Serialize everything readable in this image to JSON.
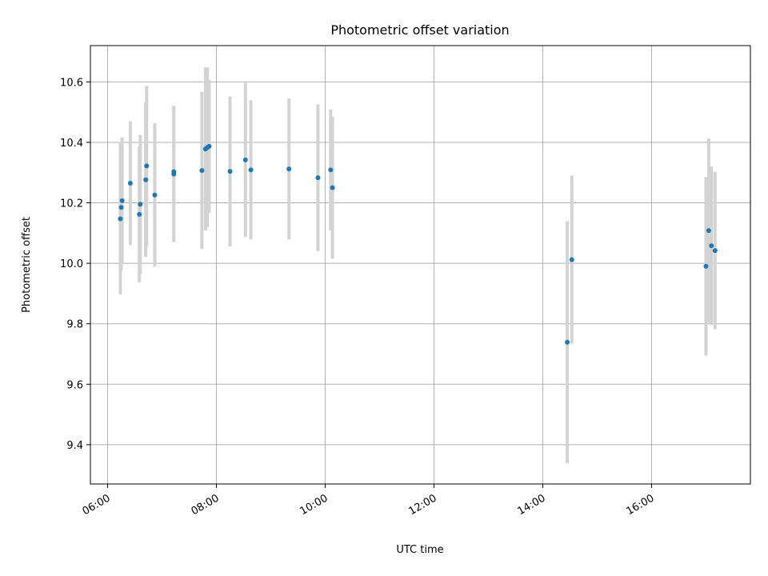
{
  "chart_data": {
    "type": "scatter",
    "title": "Photometric offset variation",
    "xlabel": "UTC time",
    "ylabel": "Photometric offset",
    "x_ticks": [
      "06:00",
      "08:00",
      "10:00",
      "12:00",
      "14:00",
      "16:00"
    ],
    "y_ticks": [
      "9.4",
      "9.6",
      "9.8",
      "10.0",
      "10.2",
      "10.4",
      "10.6"
    ],
    "xlim": [
      "05:41",
      "17:49"
    ],
    "ylim": [
      9.27,
      10.72
    ],
    "grid": true,
    "marker_color": "#1f77b4",
    "errorbar_color": "#d3d3d3",
    "points": [
      {
        "x": "06:14",
        "y": 10.147,
        "yerr": 0.25
      },
      {
        "x": "06:15",
        "y": 10.185,
        "yerr": 0.21
      },
      {
        "x": "06:16",
        "y": 10.207,
        "yerr": 0.21
      },
      {
        "x": "06:25",
        "y": 10.265,
        "yerr": 0.205
      },
      {
        "x": "06:35",
        "y": 10.162,
        "yerr": 0.225
      },
      {
        "x": "06:36",
        "y": 10.195,
        "yerr": 0.23
      },
      {
        "x": "06:42",
        "y": 10.276,
        "yerr": 0.255
      },
      {
        "x": "06:43",
        "y": 10.322,
        "yerr": 0.265
      },
      {
        "x": "06:52",
        "y": 10.226,
        "yerr": 0.237
      },
      {
        "x": "07:13",
        "y": 10.295,
        "yerr": 0.225
      },
      {
        "x": "07:13",
        "y": 10.303,
        "yerr": 0.218
      },
      {
        "x": "07:44",
        "y": 10.307,
        "yerr": 0.26
      },
      {
        "x": "07:48",
        "y": 10.378,
        "yerr": 0.27
      },
      {
        "x": "07:50",
        "y": 10.383,
        "yerr": 0.265
      },
      {
        "x": "07:52",
        "y": 10.387,
        "yerr": 0.22
      },
      {
        "x": "08:15",
        "y": 10.304,
        "yerr": 0.248
      },
      {
        "x": "08:32",
        "y": 10.342,
        "yerr": 0.255
      },
      {
        "x": "08:38",
        "y": 10.309,
        "yerr": 0.23
      },
      {
        "x": "09:20",
        "y": 10.312,
        "yerr": 0.233
      },
      {
        "x": "09:52",
        "y": 10.283,
        "yerr": 0.243
      },
      {
        "x": "10:06",
        "y": 10.309,
        "yerr": 0.2
      },
      {
        "x": "10:08",
        "y": 10.25,
        "yerr": 0.235
      },
      {
        "x": "14:27",
        "y": 9.739,
        "yerr": 0.4
      },
      {
        "x": "14:32",
        "y": 10.012,
        "yerr": 0.278
      },
      {
        "x": "17:00",
        "y": 9.99,
        "yerr": 0.295
      },
      {
        "x": "17:03",
        "y": 10.108,
        "yerr": 0.305
      },
      {
        "x": "17:06",
        "y": 10.058,
        "yerr": 0.262
      },
      {
        "x": "17:10",
        "y": 10.042,
        "yerr": 0.26
      }
    ]
  }
}
